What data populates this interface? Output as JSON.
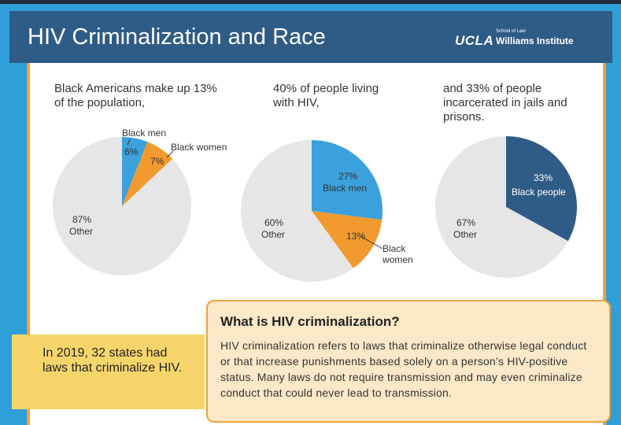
{
  "header": {
    "title": "HIV Criminalization and Race",
    "logo_ucla": "UCLA",
    "logo_school": "School of Law",
    "logo_institute": "Williams Institute"
  },
  "captions": [
    "Black Americans make up 13% of the population,",
    "40% of people living with HIV,",
    "and 33% of people incarcerated in jails and prisons."
  ],
  "colors": {
    "other": "#e6e6e6",
    "black_men": "#3ba1dc",
    "black_women": "#f29a2e",
    "black_people": "#2f5c86",
    "panel_border": "#f2a03a",
    "header_bg": "#2f5c86"
  },
  "chart_data": [
    {
      "type": "pie",
      "title": "Black Americans make up 13% of the population,",
      "slices": [
        {
          "label": "Black men",
          "value": 6,
          "value_label": "6%"
        },
        {
          "label": "Black women",
          "value": 7,
          "value_label": "7%"
        },
        {
          "label": "Other",
          "value": 87,
          "value_label": "87%"
        }
      ]
    },
    {
      "type": "pie",
      "title": "40% of people living with HIV,",
      "slices": [
        {
          "label": "Black men",
          "value": 27,
          "value_label": "27%"
        },
        {
          "label": "Black women",
          "value": 13,
          "value_label": "13%"
        },
        {
          "label": "Other",
          "value": 60,
          "value_label": "60%"
        }
      ]
    },
    {
      "type": "pie",
      "title": "and 33% of people incarcerated in jails and prisons.",
      "slices": [
        {
          "label": "Black people",
          "value": 33,
          "value_label": "33%"
        },
        {
          "label": "Other",
          "value": 67,
          "value_label": "67%"
        }
      ]
    }
  ],
  "stat_box": {
    "text": "In 2019, 32 states had laws that criminalize HIV."
  },
  "definition": {
    "title": "What is HIV criminalization?",
    "text": "HIV criminalization refers to laws that criminalize otherwise legal conduct or that increase punishments based solely on a person’s HIV-positive status. Many laws do not require transmission and may even criminalize conduct that could never lead to transmission."
  }
}
